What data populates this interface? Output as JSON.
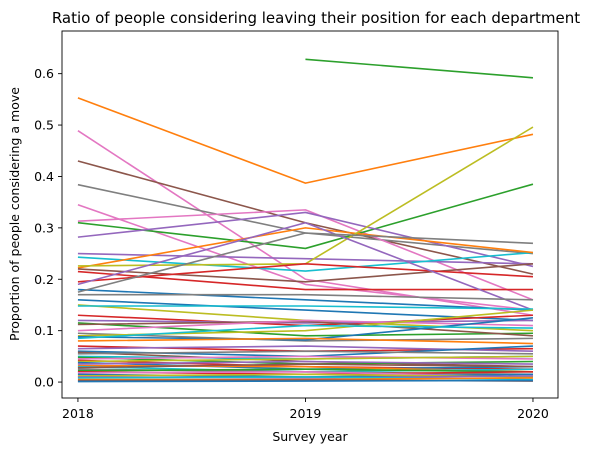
{
  "chart_data": {
    "type": "line",
    "title": "Ratio of people considering leaving their position for each department",
    "xlabel": "Survey year",
    "ylabel": "Proportion of people considering a move",
    "x": [
      2018,
      2019,
      2020
    ],
    "x_tick_labels": [
      "2018",
      "2019",
      "2020"
    ],
    "y_ticks": [
      0.0,
      0.1,
      0.2,
      0.3,
      0.4,
      0.5,
      0.6
    ],
    "y_tick_labels": [
      "0.0",
      "0.1",
      "0.2",
      "0.3",
      "0.4",
      "0.5",
      "0.6"
    ],
    "xlim": [
      2017.93,
      2020.11
    ],
    "ylim": [
      -0.031,
      0.683
    ],
    "grid": false,
    "legend": "none",
    "palette": [
      "#1f77b4",
      "#ff7f0e",
      "#2ca02c",
      "#d62728",
      "#9467bd",
      "#8c564b",
      "#e377c2",
      "#7f7f7f",
      "#bcbd22",
      "#17becf"
    ],
    "series": [
      {
        "values": [
          null,
          0.628,
          0.592
        ],
        "color": "#2ca02c"
      },
      {
        "values": [
          0.553,
          0.387,
          0.482
        ],
        "color": "#ff7f0e"
      },
      {
        "values": [
          0.489,
          0.2,
          0.13
        ],
        "color": "#e377c2"
      },
      {
        "values": [
          0.43,
          0.31,
          0.21
        ],
        "color": "#8c564b"
      },
      {
        "values": [
          0.384,
          0.29,
          0.25
        ],
        "color": "#7f7f7f"
      },
      {
        "values": [
          0.345,
          0.19,
          0.14
        ],
        "color": "#e377c2"
      },
      {
        "values": [
          0.313,
          0.335,
          0.16
        ],
        "color": "#e377c2"
      },
      {
        "values": [
          0.31,
          0.26,
          0.385
        ],
        "color": "#2ca02c"
      },
      {
        "values": [
          0.282,
          0.33,
          0.225
        ],
        "color": "#9467bd"
      },
      {
        "values": [
          0.25,
          0.24,
          0.23
        ],
        "color": "#9467bd"
      },
      {
        "values": [
          0.243,
          0.216,
          0.252
        ],
        "color": "#17becf"
      },
      {
        "values": [
          0.222,
          0.3,
          0.252
        ],
        "color": "#ff7f0e"
      },
      {
        "values": [
          0.226,
          0.23,
          0.496
        ],
        "color": "#bcbd22"
      },
      {
        "values": [
          0.22,
          0.195,
          0.23
        ],
        "color": "#8c564b"
      },
      {
        "values": [
          0.215,
          0.18,
          0.18
        ],
        "color": "#d62728"
      },
      {
        "values": [
          0.195,
          0.23,
          0.205
        ],
        "color": "#d62728"
      },
      {
        "values": [
          0.19,
          0.31,
          0.14
        ],
        "color": "#9467bd"
      },
      {
        "values": [
          0.18,
          0.16,
          0.14
        ],
        "color": "#1f77b4"
      },
      {
        "values": [
          0.175,
          0.29,
          0.27
        ],
        "color": "#7f7f7f"
      },
      {
        "values": [
          0.17,
          0.17,
          0.16
        ],
        "color": "#7f7f7f"
      },
      {
        "values": [
          0.16,
          0.14,
          0.12
        ],
        "color": "#1f77b4"
      },
      {
        "values": [
          0.15,
          0.12,
          0.1
        ],
        "color": "#bcbd22"
      },
      {
        "values": [
          0.148,
          0.148,
          0.142
        ],
        "color": "#17becf"
      },
      {
        "values": [
          0.13,
          0.11,
          0.13
        ],
        "color": "#d62728"
      },
      {
        "values": [
          0.12,
          0.115,
          0.12
        ],
        "color": "#9467bd"
      },
      {
        "values": [
          0.115,
          0.09,
          0.095
        ],
        "color": "#2ca02c"
      },
      {
        "values": [
          0.112,
          0.118,
          0.09
        ],
        "color": "#8c564b"
      },
      {
        "values": [
          0.1,
          0.12,
          0.11
        ],
        "color": "#e377c2"
      },
      {
        "values": [
          0.095,
          0.08,
          0.085
        ],
        "color": "#7f7f7f"
      },
      {
        "values": [
          0.09,
          0.1,
          0.14
        ],
        "color": "#bcbd22"
      },
      {
        "values": [
          0.088,
          0.082,
          0.125
        ],
        "color": "#1f77b4"
      },
      {
        "values": [
          0.085,
          0.11,
          0.105
        ],
        "color": "#17becf"
      },
      {
        "values": [
          0.08,
          0.085,
          0.075
        ],
        "color": "#ff7f0e"
      },
      {
        "values": [
          0.07,
          0.06,
          0.065
        ],
        "color": "#d62728"
      },
      {
        "values": [
          0.065,
          0.07,
          0.06
        ],
        "color": "#9467bd"
      },
      {
        "values": [
          0.06,
          0.05,
          0.07
        ],
        "color": "#1f77b4"
      },
      {
        "values": [
          0.058,
          0.04,
          0.03
        ],
        "color": "#8c564b"
      },
      {
        "values": [
          0.055,
          0.06,
          0.055
        ],
        "color": "#7f7f7f"
      },
      {
        "values": [
          0.05,
          0.045,
          0.05
        ],
        "color": "#17becf"
      },
      {
        "values": [
          0.048,
          0.035,
          0.04
        ],
        "color": "#2ca02c"
      },
      {
        "values": [
          0.045,
          0.05,
          0.045
        ],
        "color": "#e377c2"
      },
      {
        "values": [
          0.042,
          0.03,
          0.025
        ],
        "color": "#d62728"
      },
      {
        "values": [
          0.04,
          0.045,
          0.05
        ],
        "color": "#bcbd22"
      },
      {
        "values": [
          0.038,
          0.025,
          0.03
        ],
        "color": "#1f77b4"
      },
      {
        "values": [
          0.035,
          0.04,
          0.035
        ],
        "color": "#9467bd"
      },
      {
        "values": [
          0.032,
          0.03,
          0.02
        ],
        "color": "#ff7f0e"
      },
      {
        "values": [
          0.03,
          0.02,
          0.025
        ],
        "color": "#17becf"
      },
      {
        "values": [
          0.028,
          0.035,
          0.03
        ],
        "color": "#8c564b"
      },
      {
        "values": [
          0.025,
          0.02,
          0.015
        ],
        "color": "#7f7f7f"
      },
      {
        "values": [
          0.022,
          0.025,
          0.02
        ],
        "color": "#2ca02c"
      },
      {
        "values": [
          0.02,
          0.015,
          0.02
        ],
        "color": "#d62728"
      },
      {
        "values": [
          0.018,
          0.02,
          0.01
        ],
        "color": "#e377c2"
      },
      {
        "values": [
          0.015,
          0.01,
          0.015
        ],
        "color": "#1f77b4"
      },
      {
        "values": [
          0.012,
          0.015,
          0.01
        ],
        "color": "#bcbd22"
      },
      {
        "values": [
          0.01,
          0.008,
          0.012
        ],
        "color": "#9467bd"
      },
      {
        "values": [
          0.008,
          0.01,
          0.005
        ],
        "color": "#17becf"
      },
      {
        "values": [
          0.005,
          0.005,
          0.008
        ],
        "color": "#ff7f0e"
      },
      {
        "values": [
          0.003,
          0.004,
          0.002
        ],
        "color": "#8c564b"
      },
      {
        "values": [
          0.001,
          0.002,
          0.003
        ],
        "color": "#1f77b4"
      }
    ]
  }
}
